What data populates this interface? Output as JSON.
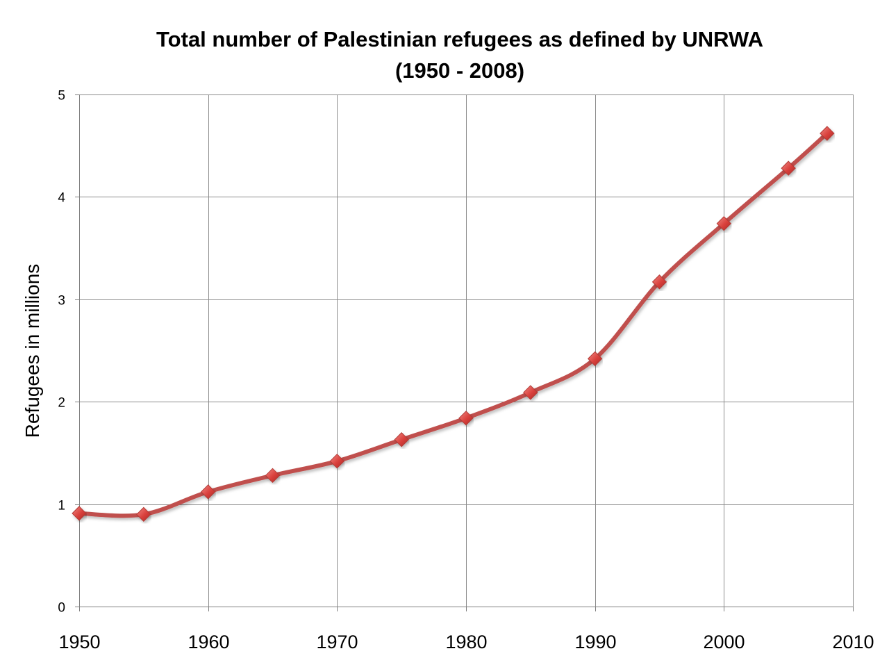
{
  "colors": {
    "series_line": "#c0504d",
    "marker_fill": "#d9403c",
    "marker_highlight": "#f08a85",
    "grid": "#8c8c8c",
    "background": "#ffffff"
  },
  "chart_data": {
    "type": "line",
    "title_line1": "Total number of Palestinian refugees as defined by UNRWA",
    "title_line2": "(1950 - 2008)",
    "xlabel": "",
    "ylabel": "Refugees in millions",
    "xlim": [
      1950,
      2010
    ],
    "ylim": [
      0,
      5
    ],
    "x_ticks": [
      1950,
      1960,
      1970,
      1980,
      1990,
      2000,
      2010
    ],
    "y_ticks": [
      0,
      1,
      2,
      3,
      4,
      5
    ],
    "grid": true,
    "legend": "none",
    "series": [
      {
        "name": "Refugees",
        "marker": "diamond",
        "smooth": true,
        "x": [
          1950,
          1955,
          1960,
          1965,
          1970,
          1975,
          1980,
          1985,
          1990,
          1995,
          2000,
          2005,
          2008
        ],
        "values": [
          0.91,
          0.9,
          1.12,
          1.28,
          1.42,
          1.63,
          1.84,
          2.09,
          2.42,
          3.17,
          3.74,
          4.28,
          4.62
        ]
      }
    ]
  }
}
